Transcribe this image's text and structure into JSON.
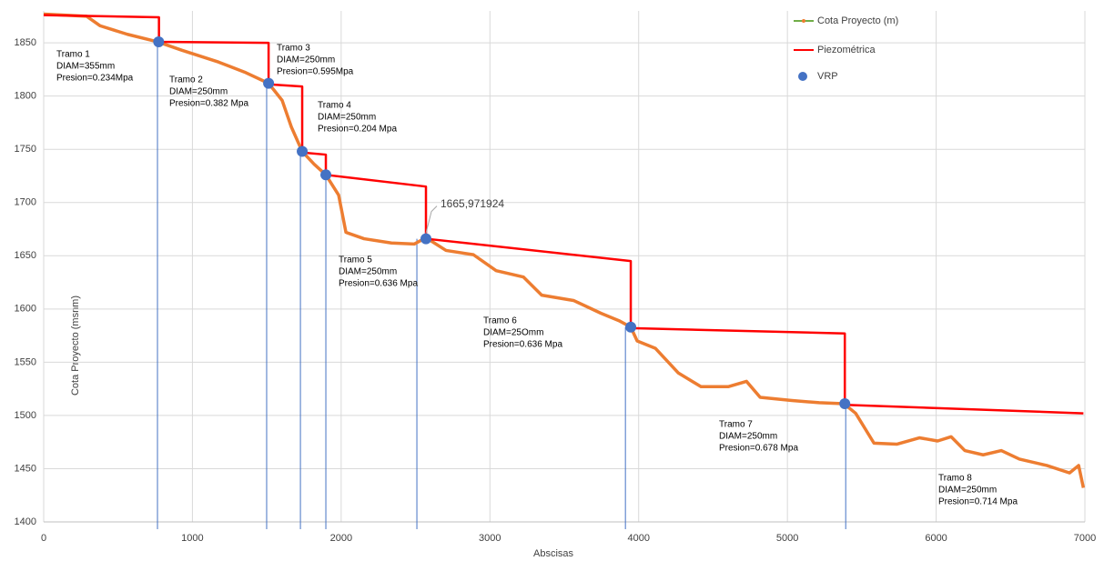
{
  "chart_data": {
    "type": "line",
    "x_label": "Abscisas",
    "y_label": "Cota Proyecto (msnm)",
    "xlim": [
      0,
      7000
    ],
    "ylim": [
      1400,
      1880
    ],
    "xticks": [
      0,
      1000,
      2000,
      3000,
      4000,
      5000,
      6000,
      7000
    ],
    "yticks": [
      1400,
      1450,
      1500,
      1550,
      1600,
      1650,
      1700,
      1750,
      1800,
      1850
    ],
    "grid": true,
    "legend": "upper right",
    "series": [
      {
        "name": "Cota Proyecto (m)",
        "color": "#ed7d31",
        "legend_color": "#70ad47",
        "x": [
          0,
          288,
          380,
          563,
          765,
          930,
          1175,
          1359,
          1512,
          1603,
          1665,
          1738,
          1818,
          1897,
          1983,
          2032,
          2154,
          2338,
          2491,
          2570,
          2705,
          2889,
          3042,
          3226,
          3348,
          3562,
          3746,
          3868,
          3947,
          3990,
          4113,
          4266,
          4419,
          4602,
          4725,
          4817,
          5031,
          5214,
          5380,
          5459,
          5582,
          5735,
          5887,
          6010,
          6101,
          6193,
          6316,
          6438,
          6560,
          6744,
          6897,
          6958,
          6990
        ],
        "values": [
          1877,
          1875,
          1866,
          1858,
          1851,
          1843,
          1832,
          1822,
          1812,
          1796,
          1771,
          1748,
          1736,
          1726,
          1707,
          1672,
          1666,
          1662,
          1661,
          1667,
          1655,
          1651,
          1636,
          1630,
          1613,
          1608,
          1596,
          1589,
          1583,
          1570,
          1563,
          1540,
          1527,
          1527,
          1532,
          1517,
          1514,
          1512,
          1511,
          1502,
          1474,
          1473,
          1479,
          1476,
          1480,
          1467,
          1463,
          1467,
          1459,
          1453,
          1446,
          1453,
          1432
        ]
      },
      {
        "name": "Piezométrica",
        "color": "#ff0000",
        "x": [
          0,
          775,
          775,
          1512,
          1512,
          1738,
          1738,
          1897,
          1897,
          2570,
          2570,
          3947,
          3947,
          5386,
          5386,
          6990
        ],
        "values": [
          1876,
          1874,
          1851,
          1850,
          1811,
          1809,
          1747,
          1745,
          1726,
          1715,
          1666,
          1645,
          1582,
          1577,
          1510,
          1502
        ]
      },
      {
        "name": "VRP",
        "color": "#4472c4",
        "kind": "scatter",
        "x": [
          773,
          1512,
          1738,
          1897,
          2570,
          3947,
          5386
        ],
        "values": [
          1851,
          1812,
          1748,
          1726,
          1665.971924,
          1583,
          1511
        ],
        "value_labels": [
          null,
          null,
          null,
          null,
          "1665,971924",
          null,
          null
        ],
        "drop_lines_x": [
          765,
          1499,
          1726,
          1897,
          2509,
          3911,
          5392
        ]
      }
    ],
    "annotations": [
      [
        "Tramo 1",
        "DIAM=355mm",
        "Presion=0.234Mpa"
      ],
      [
        "Tramo 2",
        "DIAM=250mm",
        "Presion=0.382 Mpa"
      ],
      [
        "Tramo 3",
        "DIAM=250mm",
        "Presion=0.595Mpa"
      ],
      [
        "Tramo 4",
        "DIAM=250mm",
        "Presion=0.204 Mpa"
      ],
      [
        "Tramo 5",
        "DIAM=250mm",
        "Presion=0.636 Mpa"
      ],
      [
        "Tramo 6",
        "DIAM=25Omm",
        "Presion=0.636 Mpa"
      ],
      [
        "Tramo 7",
        "DIAM=250mm",
        "Presion=0.678 Mpa"
      ],
      [
        "Tramo 8",
        "DIAM=250mm",
        "Presion=0.714 Mpa"
      ]
    ]
  }
}
